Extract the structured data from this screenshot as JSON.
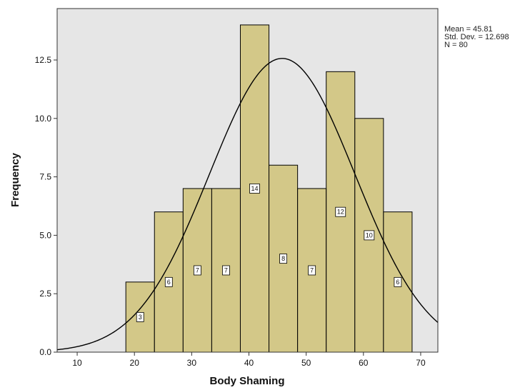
{
  "chart_data": {
    "type": "bar",
    "subtype": "histogram-with-normal-curve",
    "xlabel": "Body Shaming",
    "ylabel": "Frequency",
    "xlim": [
      6.5,
      73
    ],
    "ylim": [
      0,
      14.7
    ],
    "xticks": [
      10,
      20,
      30,
      40,
      50,
      60,
      70
    ],
    "yticks": [
      "0.0",
      "2.5",
      "5.0",
      "7.5",
      "10.0",
      "12.5"
    ],
    "bin_width": 5,
    "bins": [
      {
        "start": 18.5,
        "end": 23.5,
        "value": 3
      },
      {
        "start": 23.5,
        "end": 28.5,
        "value": 6
      },
      {
        "start": 28.5,
        "end": 33.5,
        "value": 7
      },
      {
        "start": 33.5,
        "end": 38.5,
        "value": 7
      },
      {
        "start": 38.5,
        "end": 43.5,
        "value": 14
      },
      {
        "start": 43.5,
        "end": 48.5,
        "value": 8
      },
      {
        "start": 48.5,
        "end": 53.5,
        "value": 7
      },
      {
        "start": 53.5,
        "end": 58.5,
        "value": 12
      },
      {
        "start": 58.5,
        "end": 63.5,
        "value": 10
      },
      {
        "start": 63.5,
        "end": 68.5,
        "value": 6
      }
    ],
    "normal_curve": {
      "mean": 45.81,
      "std": 12.698,
      "n": 80
    },
    "stats_text": [
      "Mean = 45.81",
      "Std. Dev. = 12.698",
      "N = 80"
    ],
    "legend": "top-right",
    "grid": false,
    "colors": {
      "bar_fill": "#cfc277",
      "bar_stroke": "#000000",
      "plot_background": "#e6e6e6",
      "curve": "#000000"
    }
  }
}
